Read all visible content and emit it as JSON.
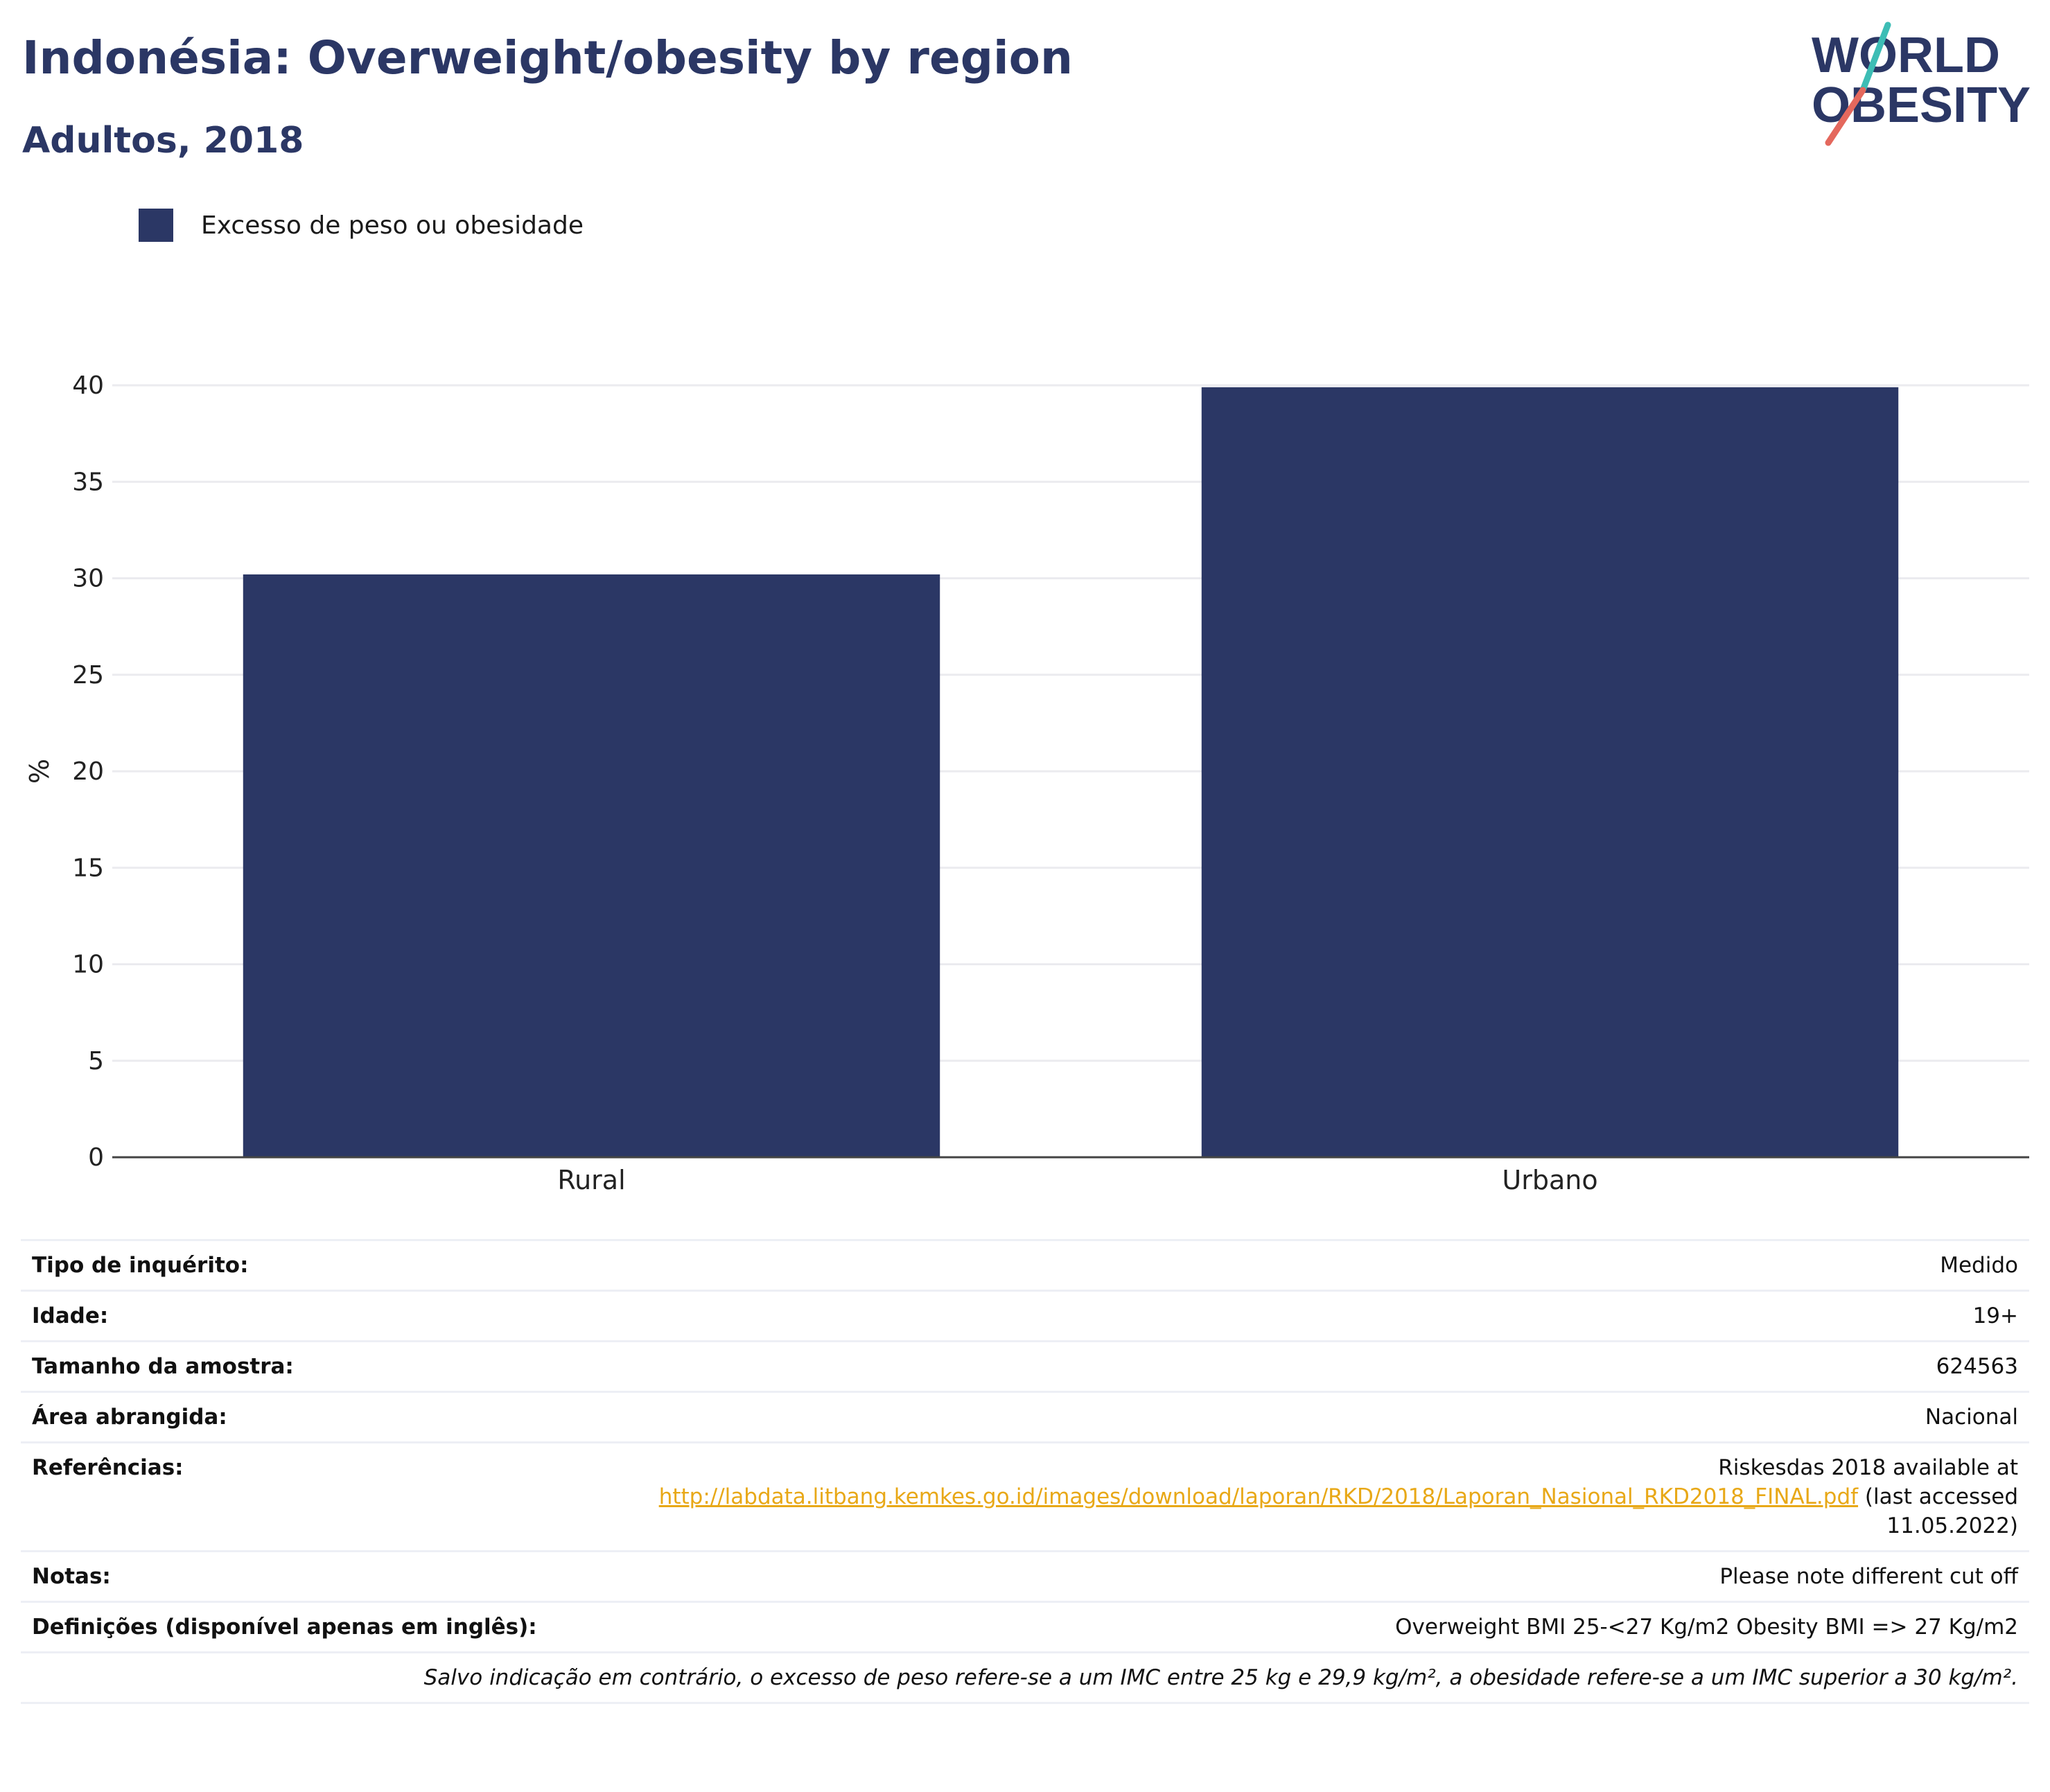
{
  "header": {
    "title": "Indonésia: Overweight/obesity by region",
    "subtitle": "Adultos, 2018"
  },
  "logo": {
    "line1": "WORLD",
    "line2": "OBESITY",
    "colors": {
      "text": "#2b3765",
      "slash_top": "#3dbdb5",
      "slash_bottom": "#e4685d"
    }
  },
  "legend": {
    "label": "Excesso de peso ou obesidade",
    "color": "#2b3765"
  },
  "chart_data": {
    "type": "bar",
    "categories": [
      "Rural",
      "Urbano"
    ],
    "series": [
      {
        "name": "Excesso de peso ou obesidade",
        "values": [
          30.2,
          39.9
        ],
        "color": "#2b3765"
      }
    ],
    "ylabel": "%",
    "ylim": [
      0,
      40
    ],
    "yticks": [
      0,
      5,
      10,
      15,
      20,
      25,
      30,
      35,
      40
    ],
    "grid": true
  },
  "info": {
    "rows": [
      {
        "key": "Tipo de inquérito:",
        "value": "Medido"
      },
      {
        "key": "Idade:",
        "value": "19+"
      },
      {
        "key": "Tamanho da amostra:",
        "value": "624563"
      }
    ],
    "area_key": "Área abrangida:",
    "area_value": "Nacional",
    "ref_key": "Referências:",
    "ref_prefix": "Riskesdas 2018 available at",
    "ref_link": "http://labdata.litbang.kemkes.go.id/images/download/laporan/RKD/2018/Laporan_Nasional_RKD2018_FINAL.pdf",
    "ref_suffix": "(last accessed 11.05.2022)",
    "notes_key": "Notas:",
    "notes_value": "Please note different cut off",
    "def_key": "Definições (disponível apenas em inglês):",
    "def_value": "Overweight BMI 25-<27 Kg/m2 Obesity BMI => 27 Kg/m2",
    "footnote": "Salvo indicação em contrário, o excesso de peso refere-se a um IMC entre 25 kg e 29,9 kg/m², a obesidade refere-se a um IMC superior a 30 kg/m²."
  }
}
